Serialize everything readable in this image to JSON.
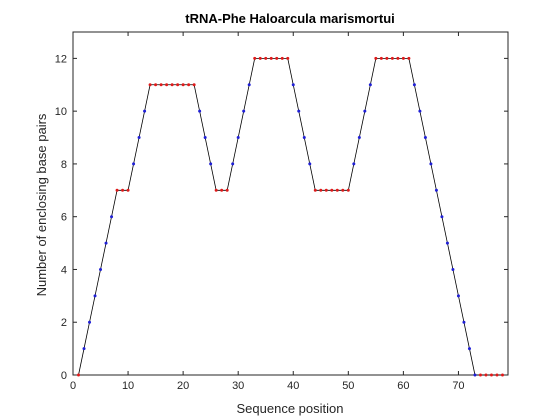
{
  "chart_data": {
    "type": "line",
    "title": "tRNA-Phe Haloarcula marismortui",
    "xlabel": "Sequence position",
    "ylabel": "Number of enclosing base pairs",
    "xlim": [
      0,
      79
    ],
    "ylim": [
      0,
      13
    ],
    "xticks": [
      0,
      10,
      20,
      30,
      40,
      50,
      60,
      70
    ],
    "yticks": [
      0,
      2,
      4,
      6,
      8,
      10,
      12
    ],
    "grid": false,
    "line_color": "#000000",
    "point_colors": {
      "paired": "#1f1fd6",
      "unpaired": "#e01a1a"
    },
    "x": [
      1,
      2,
      3,
      4,
      5,
      6,
      7,
      8,
      9,
      10,
      11,
      12,
      13,
      14,
      15,
      16,
      17,
      18,
      19,
      20,
      21,
      22,
      23,
      24,
      25,
      26,
      27,
      28,
      29,
      30,
      31,
      32,
      33,
      34,
      35,
      36,
      37,
      38,
      39,
      40,
      41,
      42,
      43,
      44,
      45,
      46,
      47,
      48,
      49,
      50,
      51,
      52,
      53,
      54,
      55,
      56,
      57,
      58,
      59,
      60,
      61,
      62,
      63,
      64,
      65,
      66,
      67,
      68,
      69,
      70,
      71,
      72,
      73,
      74,
      75,
      76,
      77,
      78
    ],
    "y": [
      0,
      1,
      2,
      3,
      4,
      5,
      6,
      7,
      7,
      7,
      8,
      9,
      10,
      11,
      11,
      11,
      11,
      11,
      11,
      11,
      11,
      11,
      10,
      9,
      8,
      7,
      7,
      7,
      8,
      9,
      10,
      11,
      12,
      12,
      12,
      12,
      12,
      12,
      12,
      11,
      10,
      9,
      8,
      7,
      7,
      7,
      7,
      7,
      7,
      7,
      8,
      9,
      10,
      11,
      12,
      12,
      12,
      12,
      12,
      12,
      12,
      11,
      10,
      9,
      8,
      7,
      6,
      5,
      4,
      3,
      2,
      1,
      0,
      0,
      0,
      0,
      0,
      0
    ],
    "point_type": [
      "u",
      "p",
      "p",
      "p",
      "p",
      "p",
      "p",
      "u",
      "u",
      "u",
      "p",
      "p",
      "p",
      "u",
      "u",
      "u",
      "u",
      "u",
      "u",
      "u",
      "u",
      "u",
      "p",
      "p",
      "p",
      "u",
      "u",
      "u",
      "p",
      "p",
      "p",
      "p",
      "u",
      "u",
      "u",
      "u",
      "u",
      "u",
      "u",
      "p",
      "p",
      "p",
      "p",
      "u",
      "u",
      "u",
      "u",
      "u",
      "u",
      "u",
      "p",
      "p",
      "p",
      "p",
      "u",
      "u",
      "u",
      "u",
      "u",
      "u",
      "u",
      "p",
      "p",
      "p",
      "p",
      "p",
      "p",
      "p",
      "p",
      "p",
      "p",
      "p",
      "p",
      "u",
      "u",
      "u",
      "u",
      "u"
    ]
  }
}
